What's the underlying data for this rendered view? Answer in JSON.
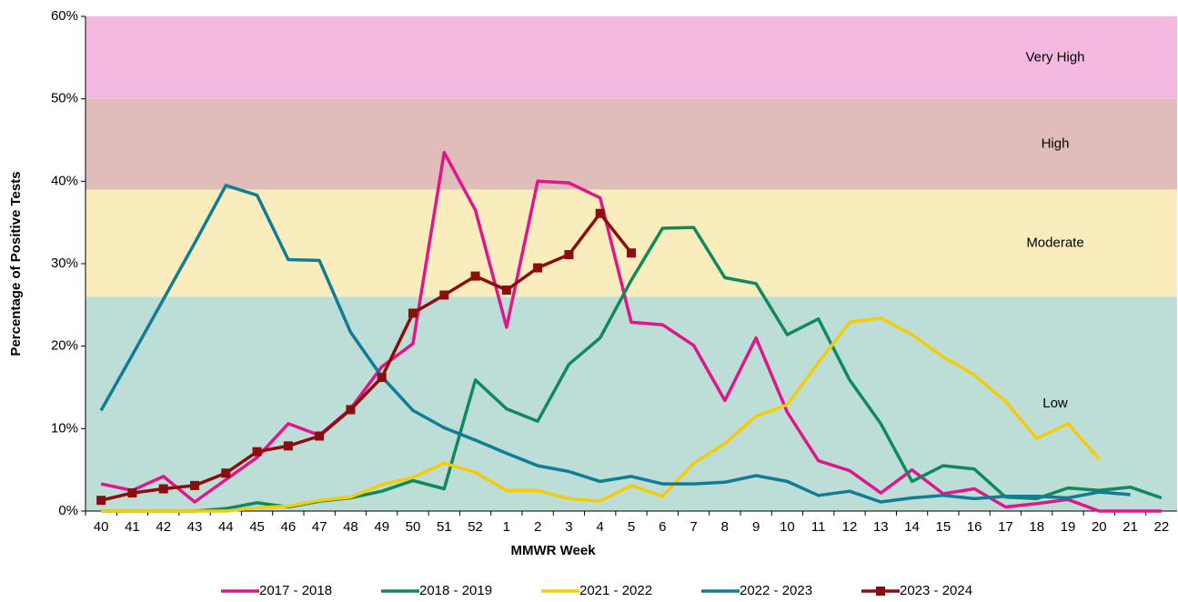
{
  "chart_data": {
    "type": "line",
    "x_label": "MMWR Week",
    "y_label": "Percentage of Positive Tests",
    "categories": [
      "40",
      "41",
      "42",
      "43",
      "44",
      "45",
      "46",
      "47",
      "48",
      "49",
      "50",
      "51",
      "52",
      "1",
      "2",
      "3",
      "4",
      "5",
      "6",
      "7",
      "8",
      "9",
      "10",
      "11",
      "12",
      "13",
      "14",
      "15",
      "16",
      "17",
      "18",
      "19",
      "20",
      "21",
      "22"
    ],
    "ylim": [
      0,
      60
    ],
    "yticks": [
      {
        "value": 0,
        "label": "0%"
      },
      {
        "value": 10,
        "label": "10%"
      },
      {
        "value": 20,
        "label": "20%"
      },
      {
        "value": 30,
        "label": "30%"
      },
      {
        "value": 40,
        "label": "40%"
      },
      {
        "value": 50,
        "label": "50%"
      },
      {
        "value": 60,
        "label": "60%"
      }
    ],
    "bands": [
      {
        "label": "Low",
        "from": 0,
        "to": 26,
        "color": "#bcded6"
      },
      {
        "label": "Moderate",
        "from": 26,
        "to": 39,
        "color": "#faedbd"
      },
      {
        "label": "High",
        "from": 39,
        "to": 50,
        "color": "#e0bcbb"
      },
      {
        "label": "Very High",
        "from": 50,
        "to": 60,
        "color": "#f4b9e0"
      }
    ],
    "legend": "bottom",
    "series": [
      {
        "name": "2017 - 2018",
        "color": "#e0168c",
        "values": [
          3.3,
          2.5,
          4.2,
          1.1,
          3.8,
          6.5,
          10.6,
          9.2,
          12.4,
          17.5,
          20.3,
          43.5,
          36.5,
          22.3,
          40,
          39.8,
          38,
          22.9,
          22.6,
          20.1,
          13.4,
          21,
          12,
          6.1,
          4.9,
          2.2,
          5,
          2.1,
          2.7,
          0.5,
          0.9,
          1.4,
          0,
          0,
          0
        ]
      },
      {
        "name": "2018 - 2019",
        "color": "#0f8a5f",
        "values": [
          0,
          0,
          0,
          0,
          0.3,
          1,
          0.5,
          1.2,
          1.6,
          2.4,
          3.7,
          2.7,
          15.9,
          12.4,
          10.9,
          17.8,
          21,
          28,
          34.3,
          34.4,
          28.3,
          27.6,
          21.4,
          23.3,
          15.9,
          10.6,
          3.6,
          5.5,
          5.1,
          1.7,
          1.5,
          2.8,
          2.5,
          2.9,
          1.6
        ]
      },
      {
        "name": "2021 - 2022",
        "color": "#f5cc0a",
        "values": [
          0,
          0,
          0,
          0,
          0,
          0.4,
          0.6,
          1.3,
          1.7,
          3.2,
          4.1,
          5.8,
          4.7,
          2.5,
          2.5,
          1.5,
          1.2,
          3.1,
          1.8,
          5.8,
          8.2,
          11.5,
          12.9,
          18,
          22.9,
          23.4,
          21.4,
          18.7,
          16.5,
          13.3,
          8.8,
          10.6,
          6.3,
          null,
          null
        ]
      },
      {
        "name": "2022 - 2023",
        "color": "#0f7d95",
        "values": [
          12.2,
          18.9,
          25.7,
          32.5,
          39.5,
          38.3,
          30.5,
          30.4,
          21.7,
          16.3,
          12.2,
          10.1,
          8.6,
          7,
          5.5,
          4.8,
          3.6,
          4.2,
          3.3,
          3.3,
          3.5,
          4.3,
          3.6,
          1.9,
          2.4,
          1.1,
          1.6,
          1.9,
          1.5,
          1.8,
          1.8,
          1.6,
          2.3,
          2.0,
          null
        ]
      },
      {
        "name": "2023 - 2024",
        "color": "#8b0d0d",
        "marker": "square",
        "values": [
          1.3,
          2.2,
          2.7,
          3.1,
          4.6,
          7.2,
          7.9,
          9.1,
          12.3,
          16.2,
          24,
          26.2,
          28.5,
          26.8,
          29.5,
          31.1,
          36.1,
          31.3,
          null,
          null,
          null,
          null,
          null,
          null,
          null,
          null,
          null,
          null,
          null,
          null,
          null,
          null,
          null,
          null,
          null
        ]
      }
    ]
  }
}
